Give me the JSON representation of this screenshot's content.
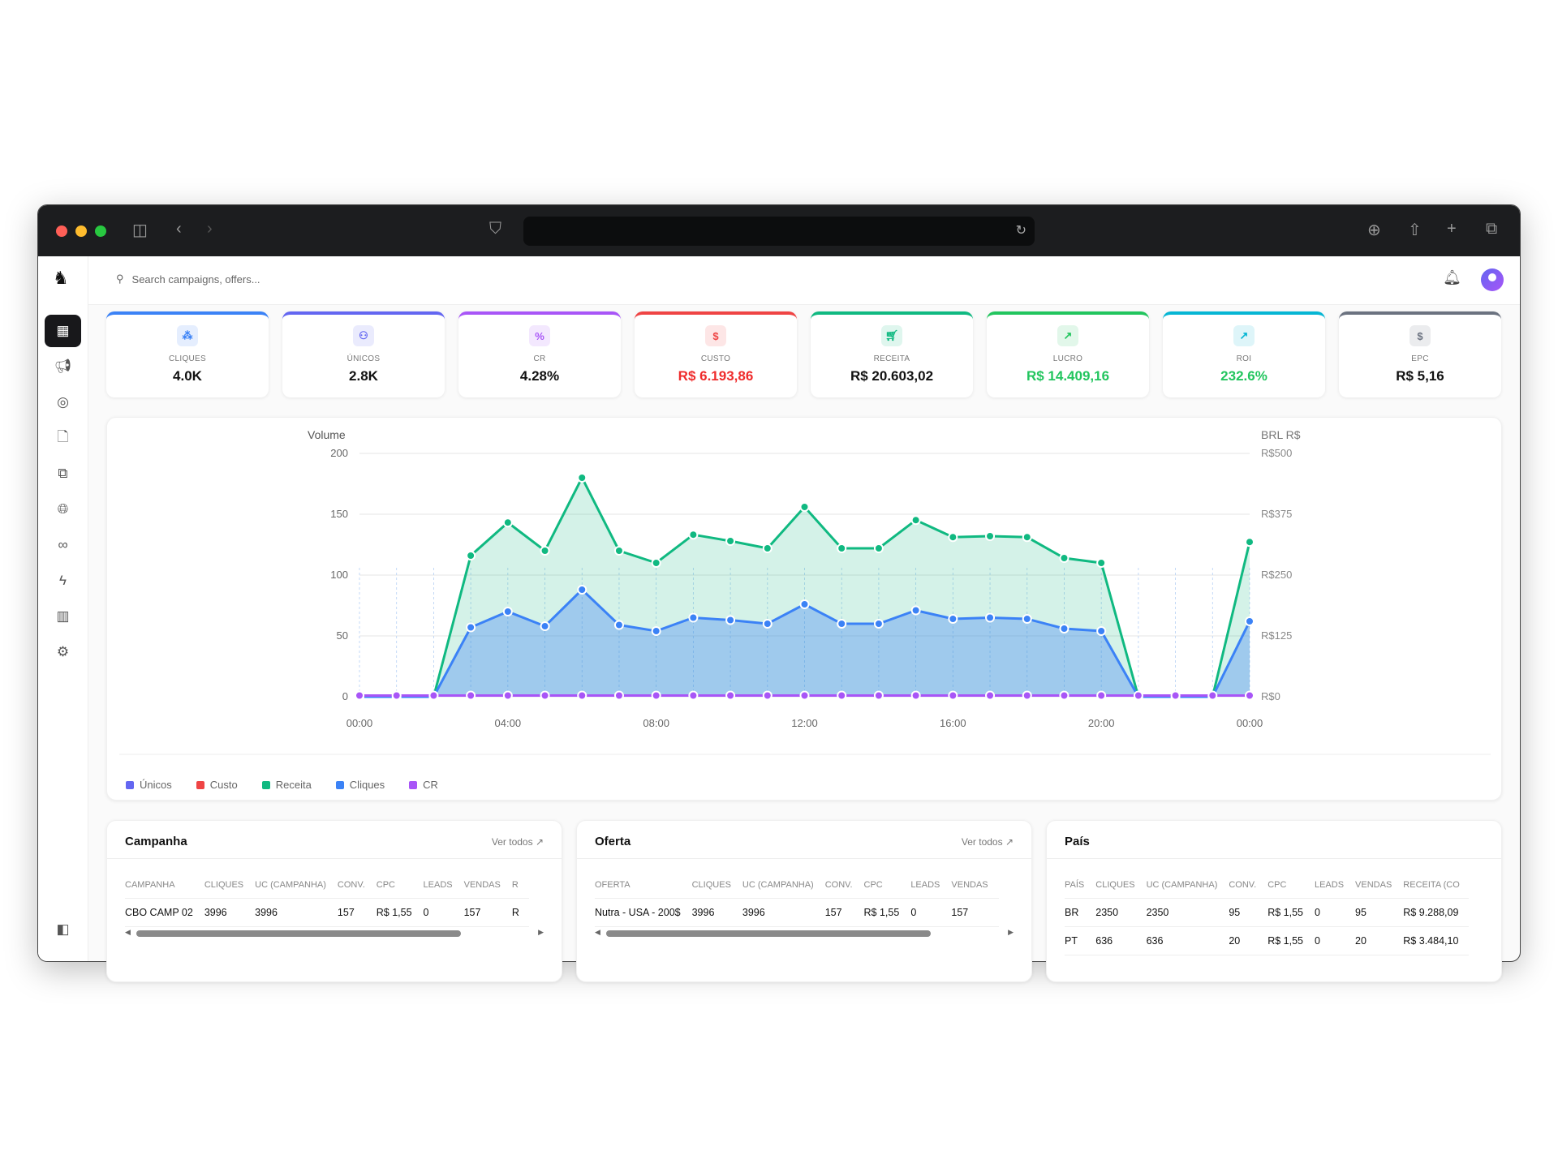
{
  "header": {
    "search_placeholder": "Search campaigns, offers..."
  },
  "kpis": [
    {
      "label": "CLIQUES",
      "value": "4.0K",
      "accent": "#3b82f6",
      "icon": "cursor-click-icon",
      "value_color": "#111111"
    },
    {
      "label": "ÚNICOS",
      "value": "2.8K",
      "accent": "#6366f1",
      "icon": "users-icon",
      "value_color": "#111111"
    },
    {
      "label": "CR",
      "value": "4.28%",
      "accent": "#a855f7",
      "icon": "percent-icon",
      "value_color": "#111111"
    },
    {
      "label": "CUSTO",
      "value": "R$ 6.193,86",
      "accent": "#ef4444",
      "icon": "dollar-icon",
      "value_color": "#ef2b2b"
    },
    {
      "label": "RECEITA",
      "value": "R$ 20.603,02",
      "accent": "#10b981",
      "icon": "cart-icon",
      "value_color": "#111111"
    },
    {
      "label": "LUCRO",
      "value": "R$ 14.409,16",
      "accent": "#22c55e",
      "icon": "trending-up-icon",
      "value_color": "#22c55e"
    },
    {
      "label": "ROI",
      "value": "232.6%",
      "accent": "#06b6d4",
      "icon": "arrow-up-right-icon",
      "value_color": "#22c55e"
    },
    {
      "label": "EPC",
      "value": "R$ 5,16",
      "accent": "#6b7280",
      "icon": "dollar-icon",
      "value_color": "#111111"
    }
  ],
  "chart_data": {
    "type": "line",
    "left_axis": {
      "label": "Volume",
      "ticks": [
        "0",
        "50",
        "100",
        "150",
        "200"
      ],
      "range": [
        0,
        200
      ]
    },
    "right_axis": {
      "label": "BRL R$",
      "ticks": [
        "R$0",
        "R$125",
        "R$250",
        "R$375",
        "R$500"
      ],
      "range": [
        0,
        500
      ]
    },
    "x_ticks": [
      "00:00",
      "04:00",
      "08:00",
      "12:00",
      "16:00",
      "20:00",
      "00:00"
    ],
    "x_hours": [
      0,
      1,
      2,
      3,
      4,
      5,
      6,
      7,
      8,
      9,
      10,
      11,
      12,
      13,
      14,
      15,
      16,
      17,
      18,
      19,
      20,
      21,
      22,
      23,
      24
    ],
    "grid": true,
    "legend_position": "bottom-left",
    "legend": [
      {
        "name": "Únicos",
        "color": "#6366f1"
      },
      {
        "name": "Custo",
        "color": "#ef4444"
      },
      {
        "name": "Receita",
        "color": "#10b981"
      },
      {
        "name": "Cliques",
        "color": "#3b82f6"
      },
      {
        "name": "CR",
        "color": "#a855f7"
      }
    ],
    "series": [
      {
        "name": "Receita",
        "axis": "right",
        "color": "#10b981",
        "values": [
          0,
          0,
          0,
          290,
          358,
          300,
          450,
          300,
          275,
          333,
          320,
          305,
          390,
          305,
          305,
          363,
          328,
          330,
          328,
          285,
          275,
          0,
          0,
          0,
          318
        ]
      },
      {
        "name": "Cliques",
        "axis": "left",
        "color": "#3b82f6",
        "values": [
          0,
          0,
          0,
          57,
          70,
          58,
          88,
          59,
          54,
          65,
          63,
          60,
          76,
          60,
          60,
          71,
          64,
          65,
          64,
          56,
          54,
          0,
          0,
          0,
          62
        ]
      },
      {
        "name": "CR",
        "axis": "left",
        "color": "#a855f7",
        "values": [
          1,
          1,
          1,
          1,
          1,
          1,
          1,
          1,
          1,
          1,
          1,
          1,
          1,
          1,
          1,
          1,
          1,
          1,
          1,
          1,
          1,
          1,
          1,
          1,
          1
        ]
      }
    ]
  },
  "tables": [
    {
      "title": "Campanha",
      "more": "Ver todos",
      "columns": [
        "CAMPANHA",
        "CLIQUES",
        "UC (CAMPANHA)",
        "CONV.",
        "CPC",
        "LEADS",
        "VENDAS",
        "R"
      ],
      "rows": [
        [
          "CBO CAMP 02",
          "3996",
          "3996",
          "157",
          "R$ 1,55",
          "0",
          "157",
          "R"
        ]
      ]
    },
    {
      "title": "Oferta",
      "more": "Ver todos",
      "columns": [
        "OFERTA",
        "CLIQUES",
        "UC (CAMPANHA)",
        "CONV.",
        "CPC",
        "LEADS",
        "VENDAS"
      ],
      "rows": [
        [
          "Nutra - USA - 200$",
          "3996",
          "3996",
          "157",
          "R$ 1,55",
          "0",
          "157"
        ]
      ]
    },
    {
      "title": "País",
      "more": "",
      "columns": [
        "PAÍS",
        "CLIQUES",
        "UC (CAMPANHA)",
        "CONV.",
        "CPC",
        "LEADS",
        "VENDAS",
        "RECEITA (CO"
      ],
      "rows": [
        [
          "BR",
          "2350",
          "2350",
          "95",
          "R$ 1,55",
          "0",
          "95",
          "R$ 9.288,09"
        ],
        [
          "PT",
          "636",
          "636",
          "20",
          "R$ 1,55",
          "0",
          "20",
          "R$ 3.484,10"
        ]
      ]
    }
  ]
}
